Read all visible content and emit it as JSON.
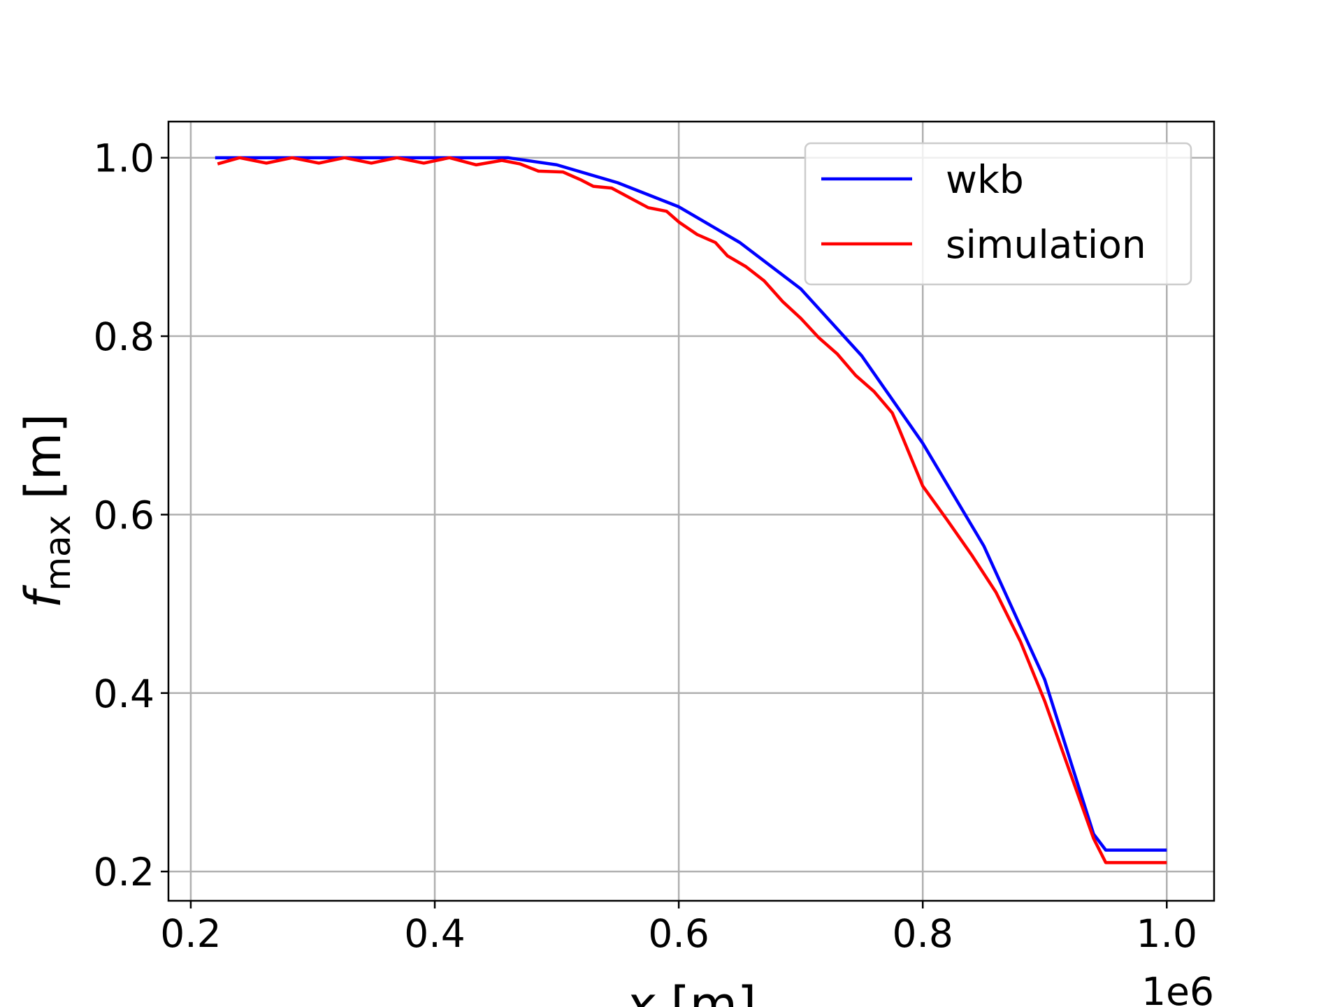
{
  "chart_data": {
    "type": "line",
    "title": "",
    "xlabel": {
      "var": "x",
      "unit": " [m]"
    },
    "ylabel": {
      "var": "f",
      "sub": "max",
      "unit": " [m]"
    },
    "x_offset_text": "1e6",
    "xlim": [
      0.1817,
      1.0388
    ],
    "ylim": [
      0.1672,
      1.0405
    ],
    "x_scale_note_units": "1e6 m",
    "xticks": [
      0.2,
      0.4,
      0.6,
      0.8,
      1.0
    ],
    "xtick_labels": [
      "0.2",
      "0.4",
      "0.6",
      "0.8",
      "1.0"
    ],
    "yticks": [
      0.2,
      0.4,
      0.6,
      0.8,
      1.0
    ],
    "ytick_labels": [
      "0.2",
      "0.4",
      "0.6",
      "0.8",
      "1.0"
    ],
    "grid": true,
    "legend_position": "top-right",
    "series": [
      {
        "name": "wkb",
        "color": "#0000ff",
        "x": [
          0.22,
          0.46,
          0.5,
          0.55,
          0.6,
          0.65,
          0.7,
          0.75,
          0.8,
          0.85,
          0.9,
          0.94,
          0.95,
          1.0
        ],
        "y": [
          1.0,
          1.0,
          0.992,
          0.972,
          0.945,
          0.905,
          0.853,
          0.778,
          0.68,
          0.565,
          0.415,
          0.242,
          0.224,
          0.224
        ]
      },
      {
        "name": "simulation",
        "color": "#ff0000",
        "x": [
          0.222,
          0.24,
          0.262,
          0.283,
          0.305,
          0.326,
          0.348,
          0.369,
          0.391,
          0.412,
          0.434,
          0.455,
          0.47,
          0.485,
          0.505,
          0.52,
          0.53,
          0.545,
          0.56,
          0.575,
          0.59,
          0.6,
          0.615,
          0.63,
          0.64,
          0.655,
          0.67,
          0.685,
          0.7,
          0.715,
          0.73,
          0.745,
          0.76,
          0.775,
          0.78,
          0.8,
          0.82,
          0.84,
          0.86,
          0.88,
          0.9,
          0.92,
          0.94,
          0.95,
          1.0
        ],
        "y": [
          0.993,
          1.0,
          0.994,
          1.0,
          0.994,
          1.0,
          0.994,
          1.0,
          0.994,
          1.0,
          0.992,
          0.997,
          0.993,
          0.985,
          0.984,
          0.975,
          0.968,
          0.966,
          0.955,
          0.944,
          0.94,
          0.928,
          0.914,
          0.905,
          0.89,
          0.878,
          0.862,
          0.839,
          0.82,
          0.798,
          0.78,
          0.756,
          0.738,
          0.714,
          0.698,
          0.632,
          0.594,
          0.555,
          0.513,
          0.458,
          0.391,
          0.314,
          0.237,
          0.21,
          0.21
        ]
      }
    ]
  }
}
